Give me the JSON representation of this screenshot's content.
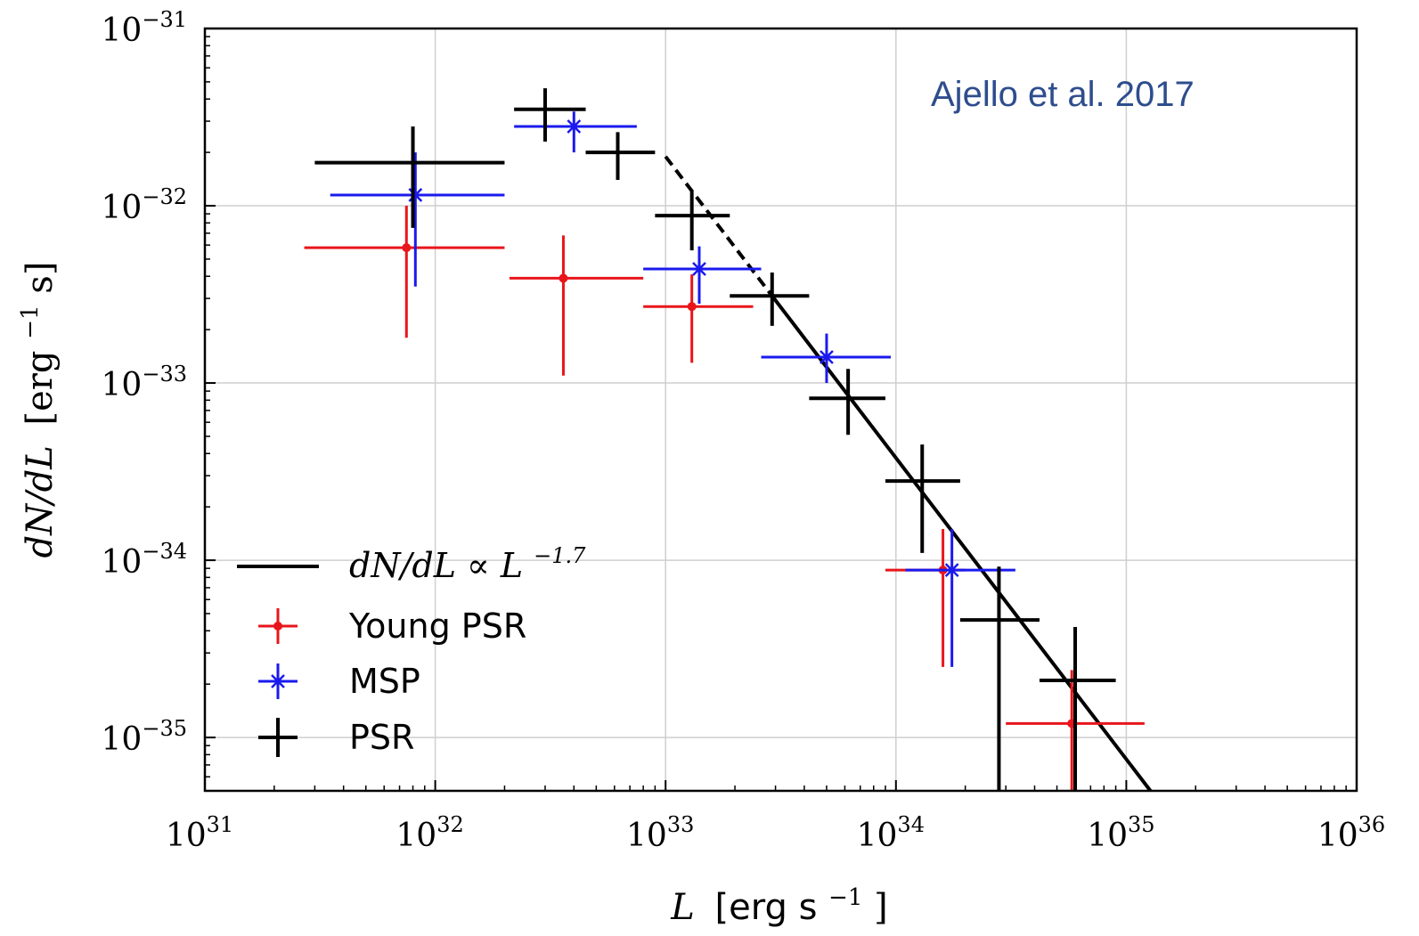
{
  "chart_data": {
    "type": "scatter",
    "xscale": "log",
    "yscale": "log",
    "xlim": [
      1e+31,
      1e+36
    ],
    "ylim": [
      5e-36,
      1e-31
    ],
    "grid": true,
    "legend_position": "lower-left",
    "x_ticks": [
      {
        "base": "10",
        "exp": "31"
      },
      {
        "base": "10",
        "exp": "32"
      },
      {
        "base": "10",
        "exp": "33"
      },
      {
        "base": "10",
        "exp": "34"
      },
      {
        "base": "10",
        "exp": "35"
      },
      {
        "base": "10",
        "exp": "36"
      }
    ],
    "y_ticks": [
      {
        "base": "10",
        "exp": "−31"
      },
      {
        "base": "10",
        "exp": "−32"
      },
      {
        "base": "10",
        "exp": "−33"
      },
      {
        "base": "10",
        "exp": "−34"
      },
      {
        "base": "10",
        "exp": "−35"
      }
    ],
    "xlabel": {
      "var": "L",
      "unit_a": "[erg s",
      "unit_exp": "−1",
      "unit_b": "]"
    },
    "ylabel": {
      "var": "dN/dL",
      "unit_a": "[erg",
      "unit_exp": "−1",
      "unit_b": " s]"
    },
    "annotation": {
      "text": "Ajello et al. 2017",
      "color": "#2e4d8e"
    },
    "model": {
      "name_main": "dN/dL ∝ L",
      "name_exp": "−1.7",
      "slope": -1.7,
      "pivot": {
        "x": 2.9e+33,
        "y": 3.1e-33
      },
      "solid_from_x": 2.9e+33,
      "color": "#000000"
    },
    "series": [
      {
        "name": "Young PSR",
        "color": "#e8161b",
        "marker": "dot",
        "points": [
          {
            "x": 7.5e+31,
            "y": 5.8e-33,
            "xlo": 2.7e+31,
            "xhi": 2e+32,
            "ylo": 1.8e-33,
            "yhi": 1e-32
          },
          {
            "x": 3.6e+32,
            "y": 3.9e-33,
            "xlo": 2.1e+32,
            "xhi": 8e+32,
            "ylo": 1.1e-33,
            "yhi": 6.8e-33
          },
          {
            "x": 1.3e+33,
            "y": 2.7e-33,
            "xlo": 8e+32,
            "xhi": 2.4e+33,
            "ylo": 1.3e-33,
            "yhi": 4.1e-33
          },
          {
            "x": 1.6e+34,
            "y": 8.8e-35,
            "xlo": 9e+33,
            "xhi": 2e+34,
            "ylo": 2.5e-35,
            "yhi": 1.5e-34
          },
          {
            "x": 5.8e+34,
            "y": 1.2e-35,
            "xlo": 3e+34,
            "xhi": 1.2e+35,
            "ylo": 5e-36,
            "yhi": 2.4e-35
          }
        ]
      },
      {
        "name": "MSP",
        "color": "#1a1aee",
        "marker": "star",
        "points": [
          {
            "x": 8.2e+31,
            "y": 1.15e-32,
            "xlo": 3.5e+31,
            "xhi": 2e+32,
            "ylo": 3.5e-33,
            "yhi": 2e-32
          },
          {
            "x": 4e+32,
            "y": 2.8e-32,
            "xlo": 2.2e+32,
            "xhi": 7.5e+32,
            "ylo": 2e-32,
            "yhi": 3.4e-32
          },
          {
            "x": 1.4e+33,
            "y": 4.4e-33,
            "xlo": 8e+32,
            "xhi": 2.6e+33,
            "ylo": 2.8e-33,
            "yhi": 5.9e-33
          },
          {
            "x": 5e+33,
            "y": 1.4e-33,
            "xlo": 2.6e+33,
            "xhi": 9.5e+33,
            "ylo": 1e-33,
            "yhi": 1.9e-33
          },
          {
            "x": 1.75e+34,
            "y": 8.8e-35,
            "xlo": 1.1e+34,
            "xhi": 3.3e+34,
            "ylo": 2.5e-35,
            "yhi": 1.5e-34
          }
        ]
      },
      {
        "name": "PSR",
        "color": "#000000",
        "marker": "plus",
        "points": [
          {
            "x": 8e+31,
            "y": 1.75e-32,
            "xlo": 3e+31,
            "xhi": 2e+32,
            "ylo": 7.5e-33,
            "yhi": 2.8e-32
          },
          {
            "x": 3e+32,
            "y": 3.5e-32,
            "xlo": 2.2e+32,
            "xhi": 4.5e+32,
            "ylo": 2.3e-32,
            "yhi": 4.6e-32
          },
          {
            "x": 6.2e+32,
            "y": 2e-32,
            "xlo": 4.5e+32,
            "xhi": 9e+32,
            "ylo": 1.4e-32,
            "yhi": 2.6e-32
          },
          {
            "x": 1.3e+33,
            "y": 8.8e-33,
            "xlo": 9e+32,
            "xhi": 1.9e+33,
            "ylo": 5.6e-33,
            "yhi": 1.2e-32
          },
          {
            "x": 2.9e+33,
            "y": 3.1e-33,
            "xlo": 1.9e+33,
            "xhi": 4.2e+33,
            "ylo": 2.1e-33,
            "yhi": 4.2e-33
          },
          {
            "x": 6.2e+33,
            "y": 8.2e-34,
            "xlo": 4.2e+33,
            "xhi": 9e+33,
            "ylo": 5.1e-34,
            "yhi": 1.2e-33
          },
          {
            "x": 1.3e+34,
            "y": 2.8e-34,
            "xlo": 9e+33,
            "xhi": 1.9e+34,
            "ylo": 1.1e-34,
            "yhi": 4.5e-34
          },
          {
            "x": 2.8e+34,
            "y": 4.6e-35,
            "xlo": 1.9e+34,
            "xhi": 4.2e+34,
            "ylo": 5e-36,
            "yhi": 9.2e-35
          },
          {
            "x": 6e+34,
            "y": 2.1e-35,
            "xlo": 4.2e+34,
            "xhi": 9e+34,
            "ylo": 5e-36,
            "yhi": 4.2e-35
          }
        ]
      }
    ]
  }
}
